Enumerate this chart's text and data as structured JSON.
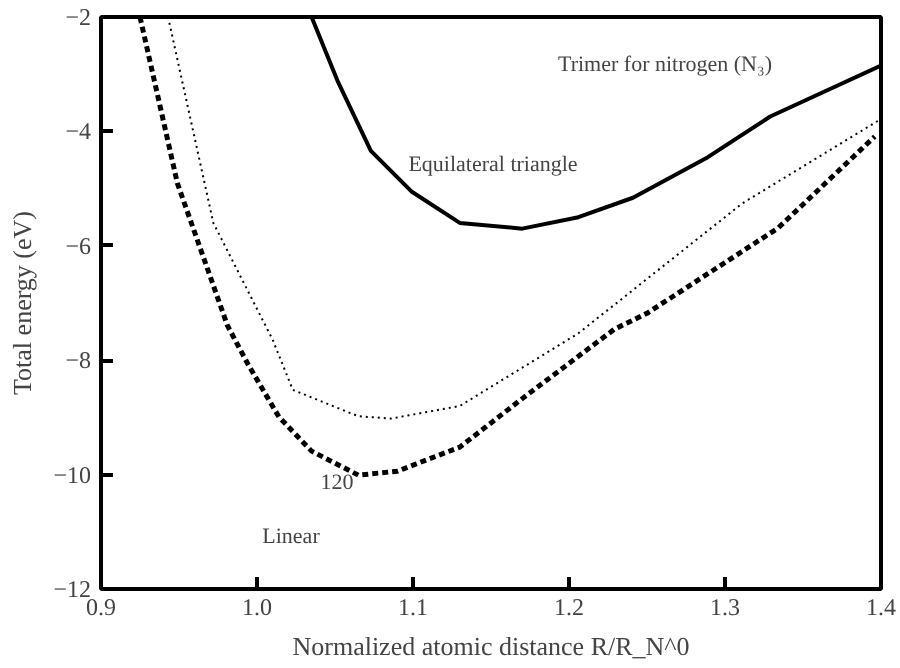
{
  "chart_data": {
    "type": "line",
    "title": "Trimer for nitrogen (N₃)",
    "xlabel": "Normalized atomic distance R/R_N^0",
    "ylabel": "Total energy (eV)",
    "xlim": [
      0.9,
      1.4
    ],
    "xticks": [
      0.9,
      {
        "value": 1.0,
        "label": "1.0"
      },
      1.1,
      1.2,
      1.3,
      1.4
    ],
    "ylim": [
      -12,
      -2
    ],
    "yticks": [
      -12,
      -10,
      -8,
      -6,
      -4,
      -2
    ],
    "grid": false,
    "marker": "none",
    "series": [
      {
        "color": "#000000",
        "line_style": "solid",
        "x": [
          1.035,
          1.052,
          1.073,
          1.099,
          1.13,
          1.17,
          1.206,
          1.241,
          1.289,
          1.329,
          1.4
        ],
        "values": [
          -2.0,
          -3.14,
          -4.34,
          -5.05,
          -5.6,
          -5.7,
          -5.5,
          -5.16,
          -4.45,
          -3.74,
          -2.85
        ]
      },
      {
        "color": "#000000",
        "line_style": "dotted",
        "x": [
          0.943,
          0.972,
          1.01,
          1.023,
          1.065,
          1.086,
          1.13,
          1.206,
          1.311,
          1.399
        ],
        "values": [
          -2.0,
          -5.6,
          -7.64,
          -8.52,
          -8.98,
          -9.02,
          -8.8,
          -7.53,
          -5.26,
          -3.8
        ]
      },
      {
        "color": "#000000",
        "line_style": "dashed",
        "x": [
          0.925,
          0.949,
          0.981,
          0.994,
          1.014,
          1.035,
          1.065,
          1.09,
          1.13,
          1.172,
          1.229,
          1.25,
          1.334,
          1.396
        ],
        "values": [
          -2.0,
          -4.91,
          -7.39,
          -8.06,
          -8.99,
          -9.59,
          -10.01,
          -9.94,
          -9.52,
          -8.63,
          -7.46,
          -7.18,
          -5.69,
          -4.09
        ]
      }
    ],
    "annotations": [
      "Equilateral triangle",
      "120",
      "Linear"
    ]
  }
}
